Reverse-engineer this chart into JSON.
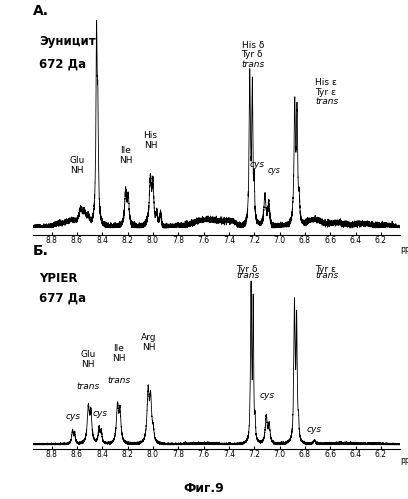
{
  "fig_label_A": "А.",
  "fig_label_B": "Б.",
  "title_A_line1": "Эуницит",
  "title_A_line2": "672 Да",
  "title_B_line1": "YPIER",
  "title_B_line2": "677 Да",
  "xticks": [
    8.8,
    8.6,
    8.4,
    8.2,
    8.0,
    7.8,
    7.6,
    7.4,
    7.2,
    7.0,
    6.8,
    6.6,
    6.4,
    6.2
  ],
  "fig_caption": "Фиг.9",
  "background_color": "#ffffff"
}
